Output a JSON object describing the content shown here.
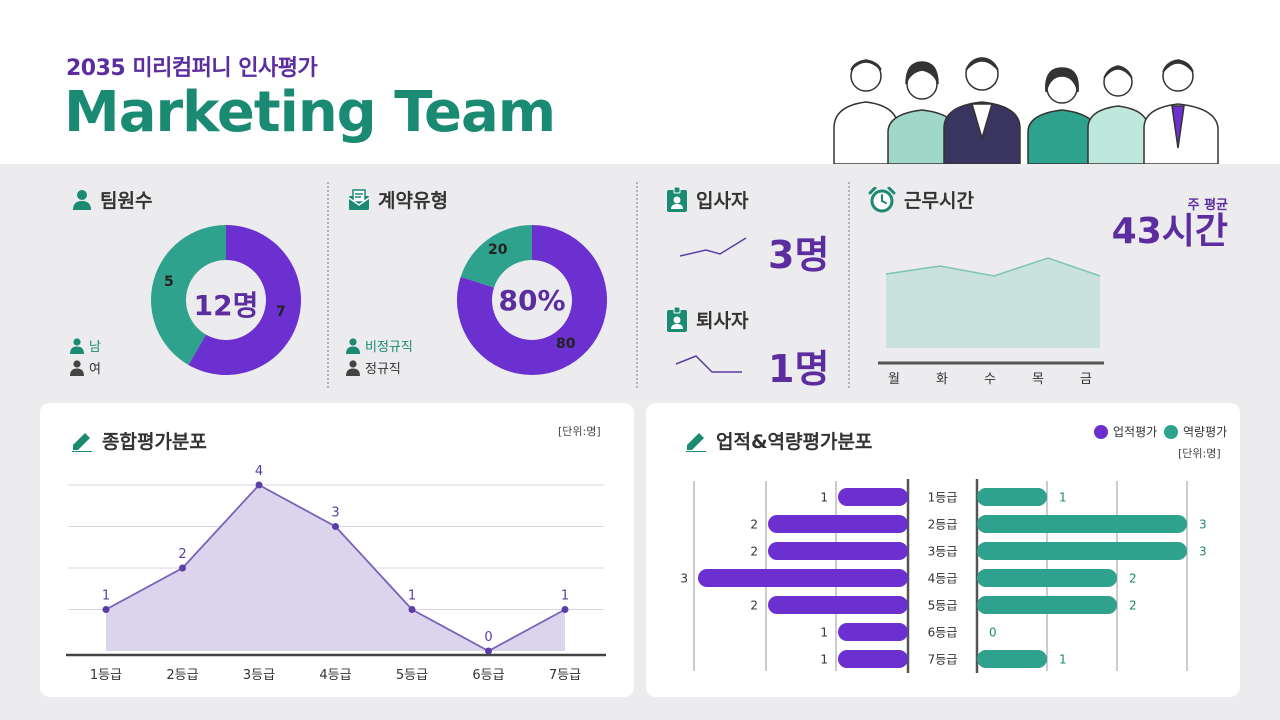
{
  "header": {
    "subtitle": "2035 미리컴퍼니 인사평가",
    "title": "Marketing Team"
  },
  "colors": {
    "purple": "#6c2fd0",
    "teal": "#2fa28d",
    "darkPurple": "#5b2d9e",
    "green": "#1a8a73"
  },
  "team": {
    "title": "팀원수",
    "center": "12명",
    "male_value": "5",
    "female_value": "7",
    "legend": {
      "male": "남",
      "female": "여"
    },
    "chart_data": {
      "type": "pie",
      "categories": [
        "남",
        "여"
      ],
      "values": [
        5,
        7
      ]
    }
  },
  "contract": {
    "title": "계약유형",
    "center": "80%",
    "nonregular_value": "20",
    "regular_value": "80",
    "legend": {
      "nonregular": "비정규직",
      "regular": "정규직"
    },
    "chart_data": {
      "type": "pie",
      "categories": [
        "비정규직",
        "정규직"
      ],
      "values": [
        20,
        80
      ]
    }
  },
  "hires": {
    "title": "입사자",
    "value": "3명"
  },
  "leavers": {
    "title": "퇴사자",
    "value": "1명"
  },
  "worktime": {
    "title": "근무시간",
    "avg_label": "주 평균",
    "avg_value": "43시간",
    "days": [
      "월",
      "화",
      "수",
      "목",
      "금"
    ]
  },
  "overall": {
    "title": "종합평가분포",
    "unit": "[단위:명]",
    "chart_data": {
      "type": "area",
      "categories": [
        "1등급",
        "2등급",
        "3등급",
        "4등급",
        "5등급",
        "6등급",
        "7등급"
      ],
      "values": [
        1,
        2,
        4,
        3,
        1,
        0,
        1
      ],
      "ylim": [
        0,
        4
      ]
    }
  },
  "perf": {
    "title": "업적&역량평가분포",
    "unit": "[단위:명]",
    "legend": {
      "perf": "업적평가",
      "comp": "역량평가"
    },
    "chart_data": {
      "type": "bar",
      "categories": [
        "1등급",
        "2등급",
        "3등급",
        "4등급",
        "5등급",
        "6등급",
        "7등급"
      ],
      "series": [
        {
          "name": "업적평가",
          "values": [
            1,
            2,
            2,
            3,
            2,
            1,
            1
          ]
        },
        {
          "name": "역량평가",
          "values": [
            1,
            3,
            3,
            2,
            2,
            0,
            1
          ]
        }
      ]
    }
  }
}
